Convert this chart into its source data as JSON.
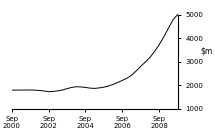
{
  "title": "",
  "ylim": [
    1000,
    5500
  ],
  "yticks": [
    1000,
    2000,
    3000,
    4000,
    5000
  ],
  "xlabels": [
    "Sep\n2000",
    "Sep\n2002",
    "Sep\n2004",
    "Sep\n2006",
    "Sep\n2008"
  ],
  "xtick_positions": [
    0,
    8,
    16,
    24,
    32
  ],
  "line_color": "#000000",
  "background_color": "#ffffff",
  "x": [
    0,
    1,
    2,
    3,
    4,
    5,
    6,
    7,
    8,
    9,
    10,
    11,
    12,
    13,
    14,
    15,
    16,
    17,
    18,
    19,
    20,
    21,
    22,
    23,
    24,
    25,
    26,
    27,
    28,
    29,
    30,
    31,
    32,
    33,
    34,
    35,
    36
  ],
  "y": [
    1780,
    1790,
    1785,
    1790,
    1790,
    1785,
    1770,
    1750,
    1720,
    1730,
    1755,
    1790,
    1850,
    1900,
    1930,
    1920,
    1900,
    1870,
    1860,
    1880,
    1910,
    1960,
    2030,
    2110,
    2200,
    2290,
    2420,
    2600,
    2800,
    2980,
    3180,
    3430,
    3720,
    4050,
    4420,
    4780,
    5000
  ]
}
